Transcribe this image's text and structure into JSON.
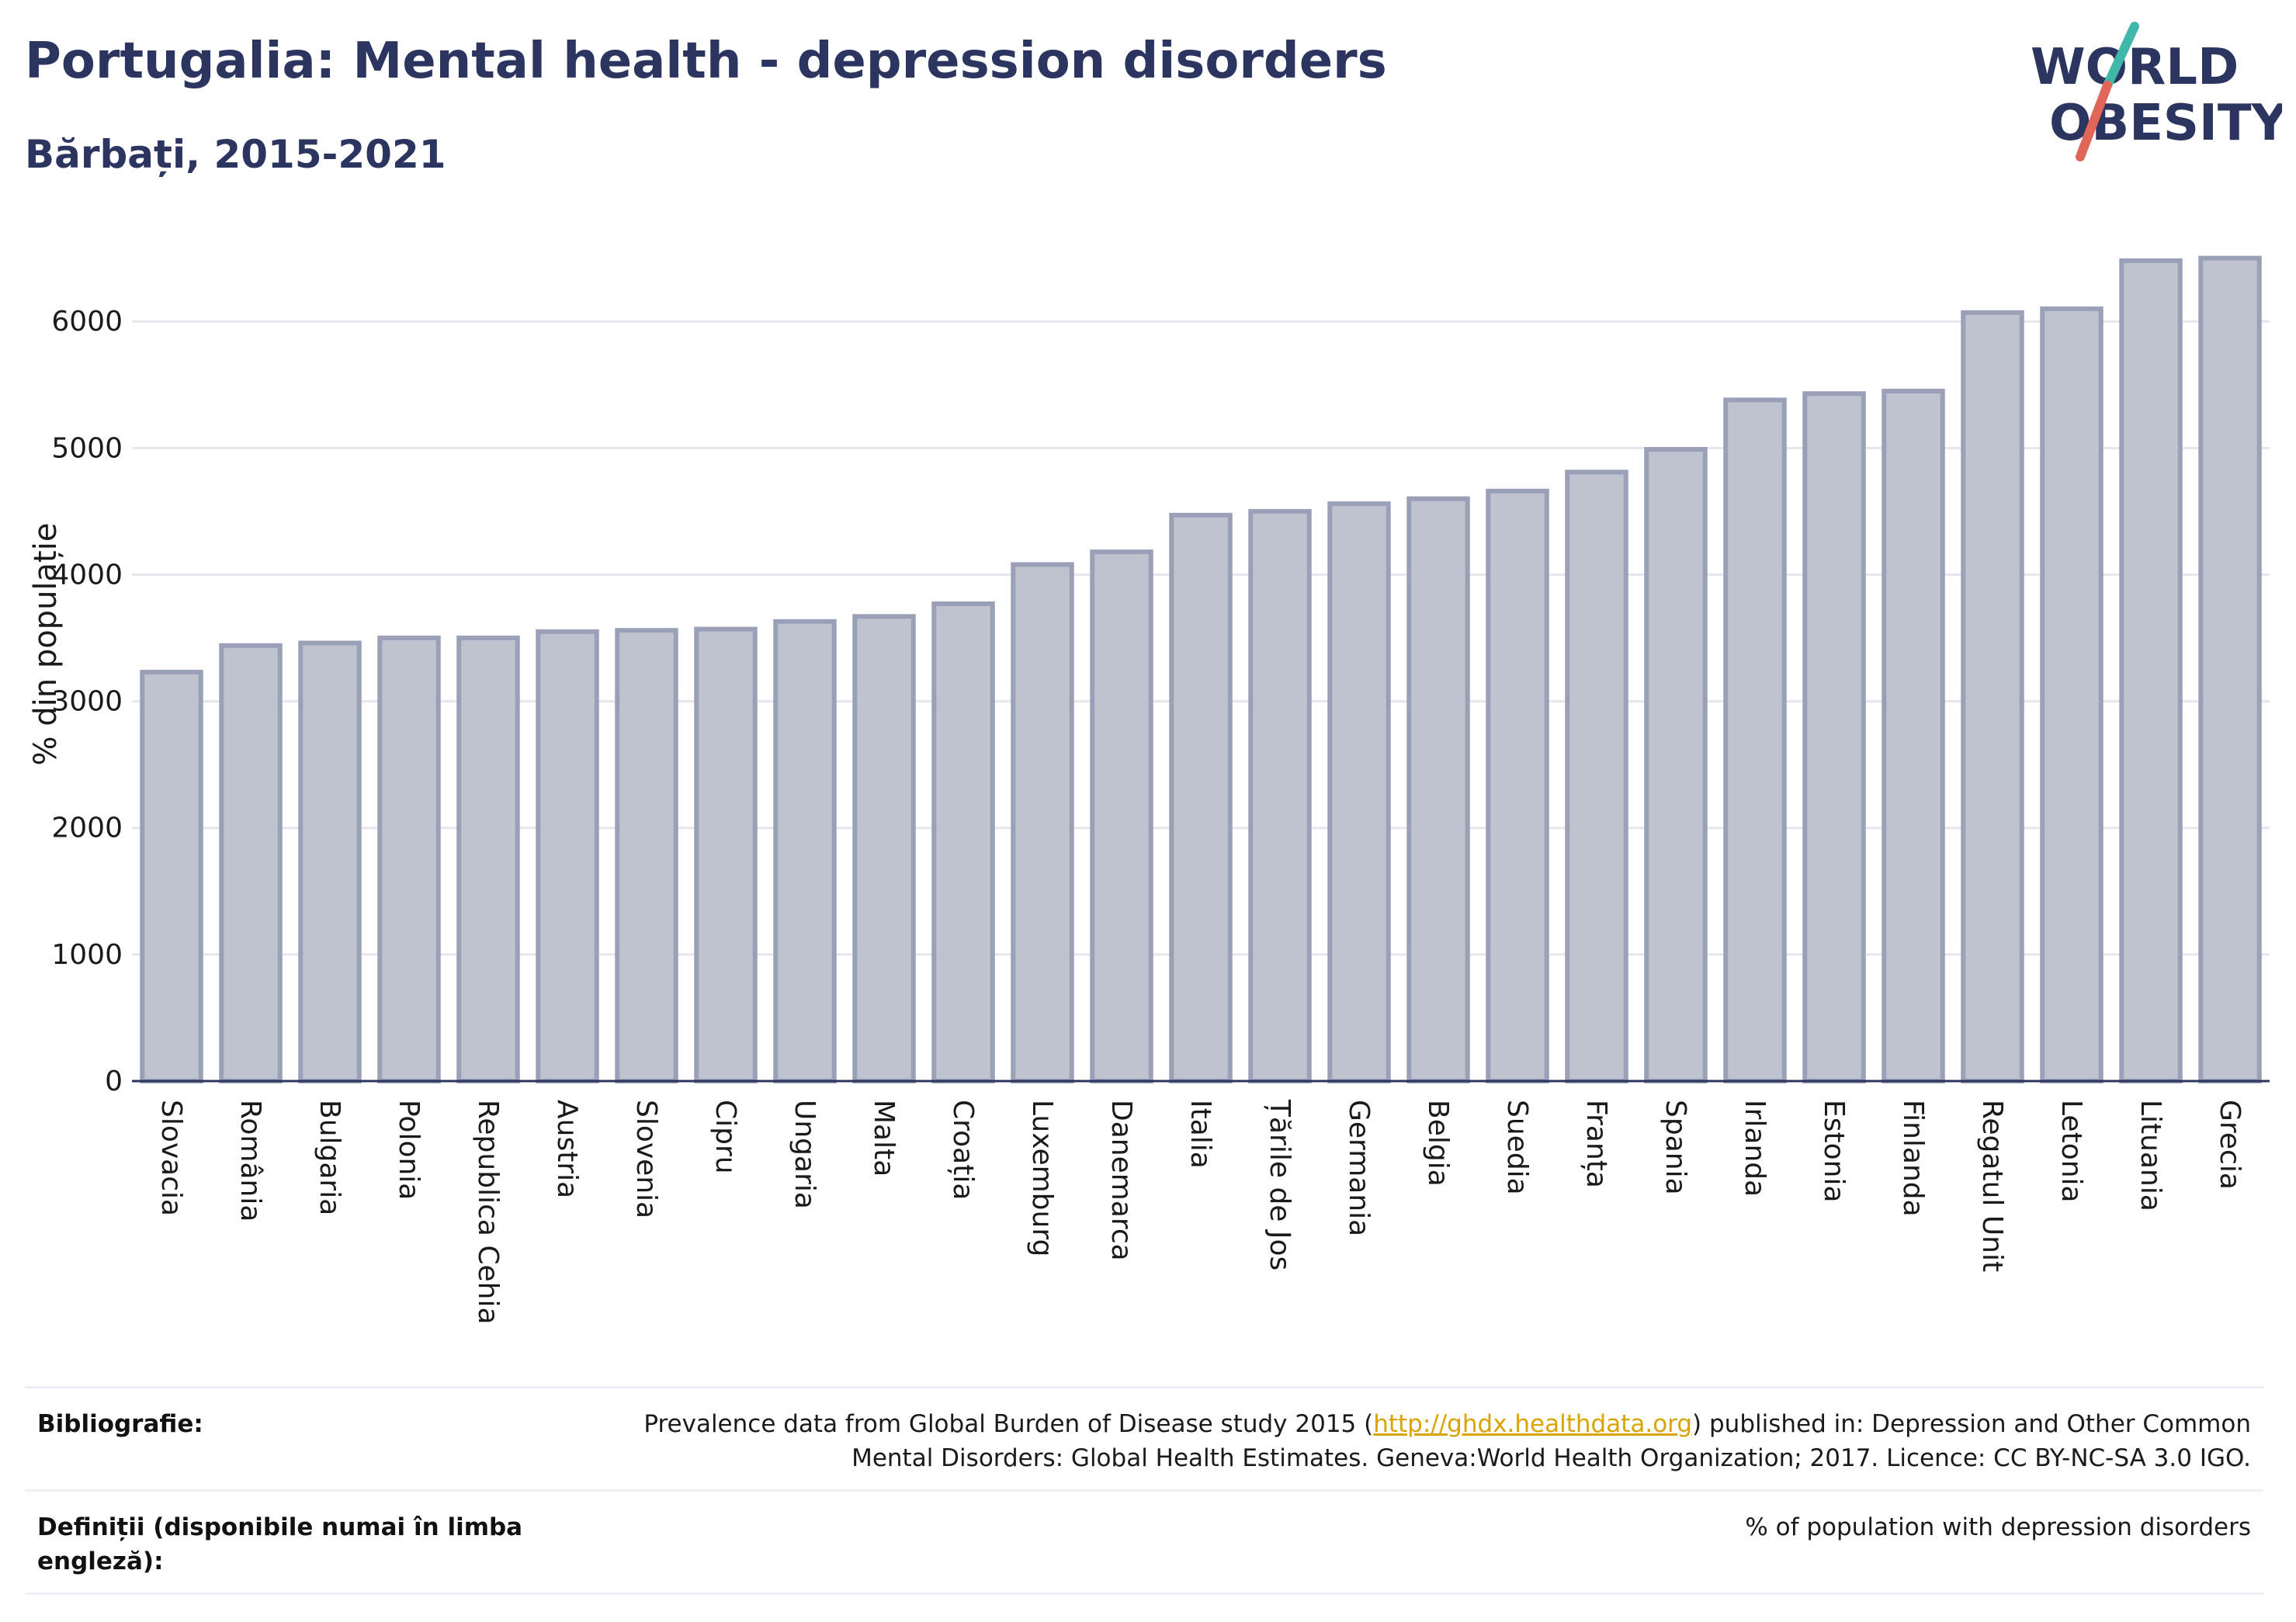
{
  "header": {
    "title": "Portugalia: Mental health - depression disorders",
    "subtitle": "Bărbați, 2015-2021"
  },
  "logo": {
    "line1": "WORLD",
    "line2": "OBESITY",
    "colors": {
      "text": "#2b3560",
      "slash_top": "#3fb7a9",
      "slash_bottom": "#e0665a"
    }
  },
  "colors": {
    "bar_fill": "#bfc3cf",
    "bar_stroke": "#9aa0b8",
    "grid": "#e6e6ee",
    "title": "#2b3560"
  },
  "chart_data": {
    "type": "bar",
    "ylabel": "% din populație",
    "ylim": [
      0,
      6700
    ],
    "yticks": [
      0,
      1000,
      2000,
      3000,
      4000,
      5000,
      6000
    ],
    "grid": true,
    "categories": [
      "Slovacia",
      "România",
      "Bulgaria",
      "Polonia",
      "Republica Cehia",
      "Austria",
      "Slovenia",
      "Cipru",
      "Ungaria",
      "Malta",
      "Croația",
      "Luxemburg",
      "Danemarca",
      "Italia",
      "Țările de Jos",
      "Germania",
      "Belgia",
      "Suedia",
      "Franța",
      "Spania",
      "Irlanda",
      "Estonia",
      "Finlanda",
      "Regatul Unit",
      "Letonia",
      "Lituania",
      "Grecia"
    ],
    "values": [
      3230,
      3440,
      3460,
      3500,
      3500,
      3550,
      3560,
      3570,
      3630,
      3670,
      3770,
      4080,
      4180,
      4470,
      4500,
      4560,
      4600,
      4660,
      4810,
      4990,
      5380,
      5430,
      5450,
      6070,
      6100,
      6480,
      6500
    ]
  },
  "footer": {
    "bibliography_label": "Bibliografie:",
    "bibliography_pre": "Prevalence data from Global Burden of Disease study 2015 (",
    "bibliography_link": "http://ghdx.healthdata.org",
    "bibliography_post": ") published in: Depression and Other Common",
    "bibliography_line2": "Mental Disorders: Global Health Estimates. Geneva:World Health Organization; 2017. Licence: CC BY-NC-SA 3.0 IGO.",
    "definitions_label": "Definiții (disponibile numai în limba engleză):",
    "definitions_text": "% of population with depression disorders"
  }
}
